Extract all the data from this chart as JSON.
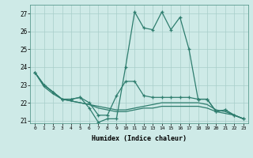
{
  "xlabel": "Humidex (Indice chaleur)",
  "x": [
    0,
    1,
    2,
    3,
    4,
    5,
    6,
    7,
    8,
    9,
    10,
    11,
    12,
    13,
    14,
    15,
    16,
    17,
    18,
    19,
    20,
    21,
    22,
    23
  ],
  "line1": [
    23.7,
    23.0,
    22.6,
    22.2,
    22.2,
    22.3,
    21.7,
    20.9,
    21.1,
    21.1,
    24.0,
    27.1,
    26.2,
    26.1,
    27.1,
    26.1,
    26.8,
    25.0,
    22.2,
    22.2,
    21.5,
    21.6,
    21.3,
    21.1
  ],
  "line2": [
    23.7,
    23.0,
    22.6,
    22.2,
    22.2,
    22.3,
    22.0,
    21.3,
    21.3,
    22.4,
    23.2,
    23.2,
    22.4,
    22.3,
    22.3,
    22.3,
    22.3,
    22.3,
    22.2,
    22.2,
    21.5,
    21.6,
    21.3,
    21.1
  ],
  "line3": [
    23.7,
    23.0,
    22.6,
    22.2,
    22.1,
    22.0,
    21.9,
    21.8,
    21.7,
    21.6,
    21.6,
    21.7,
    21.8,
    21.9,
    22.0,
    22.0,
    22.0,
    22.0,
    22.0,
    21.9,
    21.6,
    21.5,
    21.3,
    21.1
  ],
  "line4": [
    23.7,
    22.9,
    22.5,
    22.2,
    22.1,
    22.0,
    21.9,
    21.7,
    21.6,
    21.5,
    21.5,
    21.6,
    21.7,
    21.7,
    21.8,
    21.8,
    21.8,
    21.8,
    21.8,
    21.7,
    21.5,
    21.4,
    21.3,
    21.1
  ],
  "line_color": "#2e7d6e",
  "bg_color": "#ceeae7",
  "grid_color": "#a8ceca",
  "ylim": [
    20.85,
    27.5
  ],
  "yticks": [
    21,
    22,
    23,
    24,
    25,
    26,
    27
  ],
  "xlim": [
    -0.5,
    23.5
  ],
  "marker": "+"
}
